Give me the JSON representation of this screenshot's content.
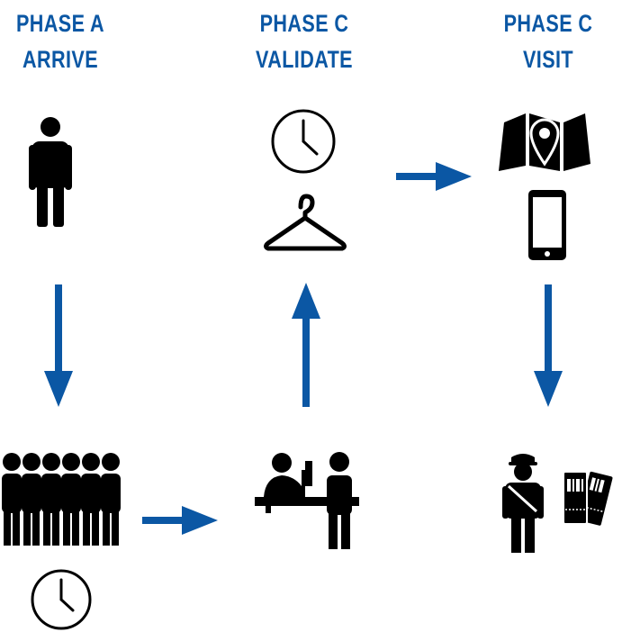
{
  "colors": {
    "accent": "#0b57a4",
    "icon": "#000000",
    "background": "#ffffff"
  },
  "phases": [
    {
      "phase": "PHASE A",
      "label": "ARRIVE"
    },
    {
      "phase": "PHASE C",
      "label": "VALIDATE"
    },
    {
      "phase": "PHASE C",
      "label": "VISIT"
    }
  ],
  "icons": [
    "person-icon",
    "queue-icon",
    "clock-icon",
    "reception-desk-icon",
    "clock-icon",
    "coat-hanger-icon",
    "map-pin-icon",
    "smartphone-icon",
    "guard-icon",
    "tickets-icon"
  ]
}
